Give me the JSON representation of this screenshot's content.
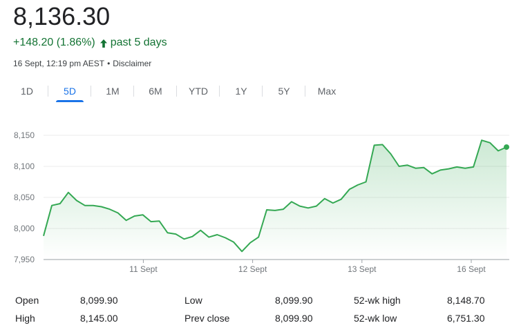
{
  "header": {
    "price": "8,136.30",
    "change": "+148.20 (1.86%)",
    "period_label": "past 5 days",
    "timestamp": "16 Sept, 12:19 pm AEST",
    "separator": "•",
    "disclaimer": "Disclaimer",
    "up_color": "#137333",
    "arrow_icon": "arrow-up-icon"
  },
  "tabs": [
    {
      "label": "1D"
    },
    {
      "label": "5D"
    },
    {
      "label": "1M"
    },
    {
      "label": "6M"
    },
    {
      "label": "YTD"
    },
    {
      "label": "1Y"
    },
    {
      "label": "5Y"
    },
    {
      "label": "Max"
    }
  ],
  "active_tab": "5D",
  "stats": {
    "open_label": "Open",
    "open_value": "8,099.90",
    "high_label": "High",
    "high_value": "8,145.00",
    "low_label": "Low",
    "low_value": "8,099.90",
    "prev_close_label": "Prev close",
    "prev_close_value": "8,099.90",
    "wk52_high_label": "52-wk high",
    "wk52_high_value": "8,148.70",
    "wk52_low_label": "52-wk low",
    "wk52_low_value": "6,751.30"
  },
  "chart_data": {
    "type": "area",
    "line_color": "#34a853",
    "ylim": [
      7950,
      8150
    ],
    "yticks": [
      7950,
      8000,
      8050,
      8100,
      8150
    ],
    "ytick_labels": [
      "7,950",
      "8,000",
      "8,050",
      "8,100",
      "8,150"
    ],
    "xlim": [
      0,
      49
    ],
    "xticks": [
      {
        "x": 10.5,
        "label": "11 Sept"
      },
      {
        "x": 22,
        "label": "12 Sept"
      },
      {
        "x": 33.5,
        "label": "13 Sept"
      },
      {
        "x": 45,
        "label": "16 Sept"
      }
    ],
    "grid": true,
    "values": [
      7988,
      8037,
      8040,
      8058,
      8045,
      8037,
      8037,
      8035,
      8031,
      8025,
      8013,
      8020,
      8022,
      8011,
      8012,
      7993,
      7991,
      7983,
      7987,
      7997,
      7986,
      7990,
      7985,
      7978,
      7963,
      7977,
      7986,
      8030,
      8029,
      8031,
      8043,
      8036,
      8033,
      8036,
      8048,
      8041,
      8047,
      8063,
      8070,
      8075,
      8134,
      8135,
      8120,
      8100,
      8102,
      8097,
      8098,
      8088,
      8094,
      8096,
      8099,
      8097,
      8099,
      8142,
      8138,
      8125,
      8131
    ]
  }
}
